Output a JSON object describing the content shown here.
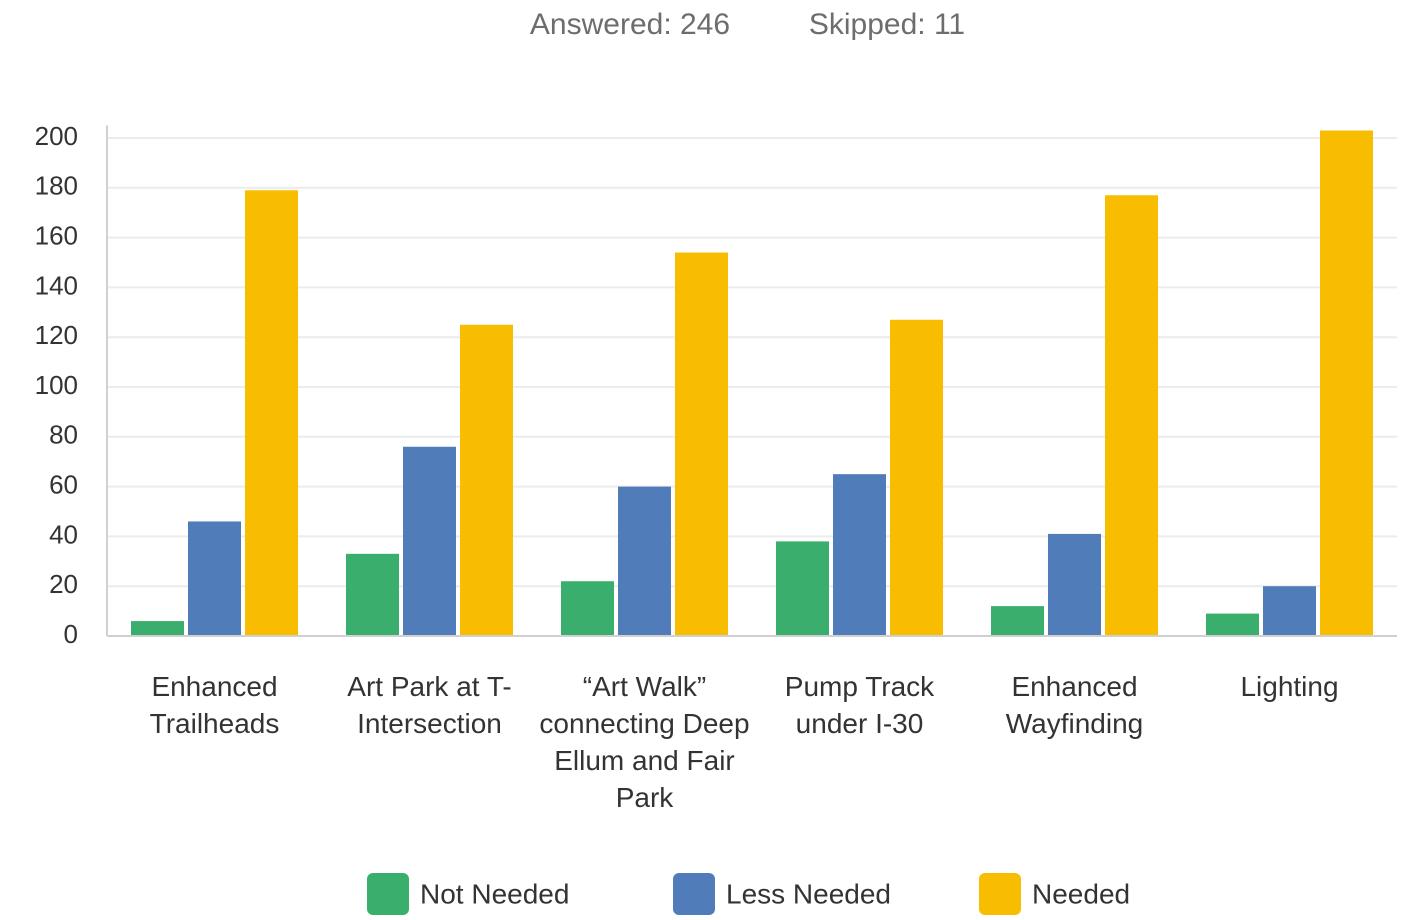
{
  "chart_data": {
    "type": "bar",
    "header": [
      "Answered: 246",
      "Skipped: 11"
    ],
    "categories": [
      "Enhanced Trailheads",
      "Art Park at T-Intersection",
      "“Art Walk” connecting Deep Ellum and Fair Park",
      "Pump Track under I-30",
      "Enhanced Wayfinding",
      "Lighting"
    ],
    "series": [
      {
        "name": "Not Needed",
        "color": "#3aae6c",
        "values": [
          6,
          33,
          22,
          38,
          12,
          9
        ]
      },
      {
        "name": "Less Needed",
        "color": "#507dba",
        "values": [
          46,
          76,
          60,
          65,
          41,
          20
        ]
      },
      {
        "name": "Needed",
        "color": "#f8bd00",
        "values": [
          179,
          125,
          154,
          127,
          177,
          203
        ]
      }
    ],
    "ylim": [
      0,
      205
    ],
    "yticks": [
      0,
      20,
      40,
      60,
      80,
      100,
      120,
      140,
      160,
      180,
      200
    ],
    "grid": true,
    "legend": "bottom"
  }
}
